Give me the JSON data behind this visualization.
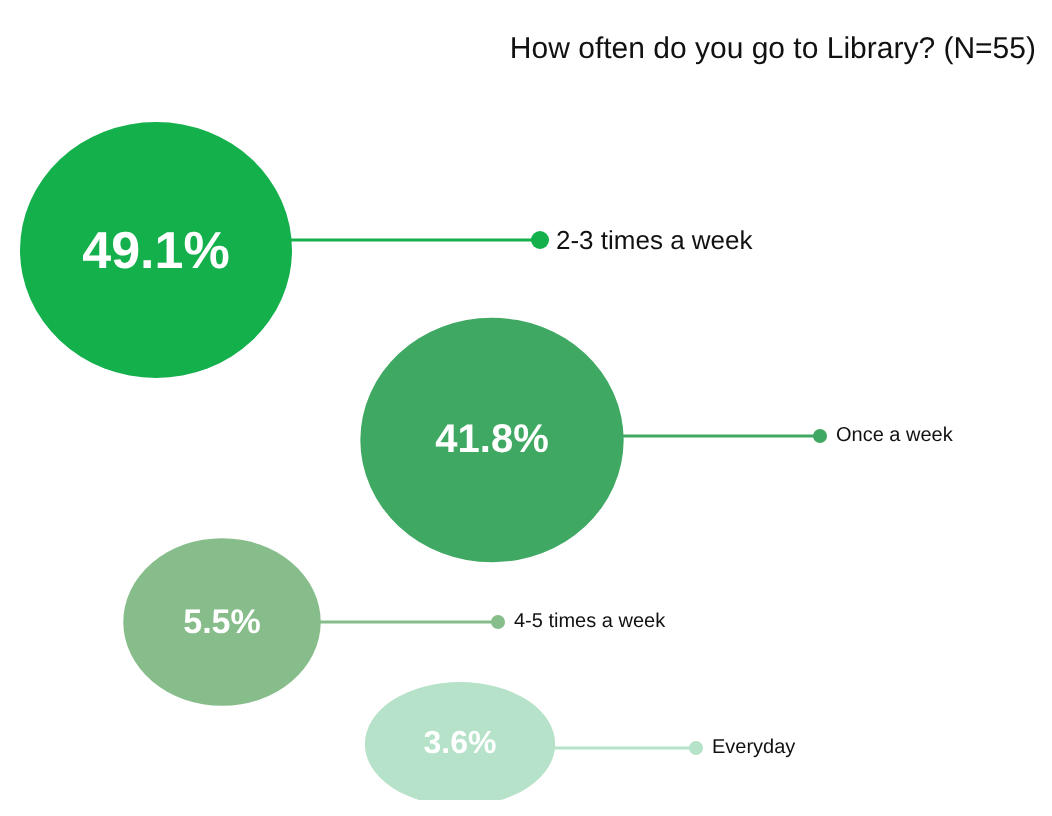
{
  "chart_data": {
    "type": "other",
    "title": "How often do you go to Library? (N=55)",
    "categories": [
      "2-3 times a week",
      "Once a week",
      "4-5 times a week",
      "Everyday"
    ],
    "values": [
      49.1,
      41.8,
      5.5,
      3.6
    ],
    "value_labels": [
      "49.1%",
      "41.8%",
      "5.5%",
      "3.6%"
    ],
    "colors": [
      "#13b04b",
      "#3fa863",
      "#86bd8a",
      "#b5e2c9"
    ]
  }
}
